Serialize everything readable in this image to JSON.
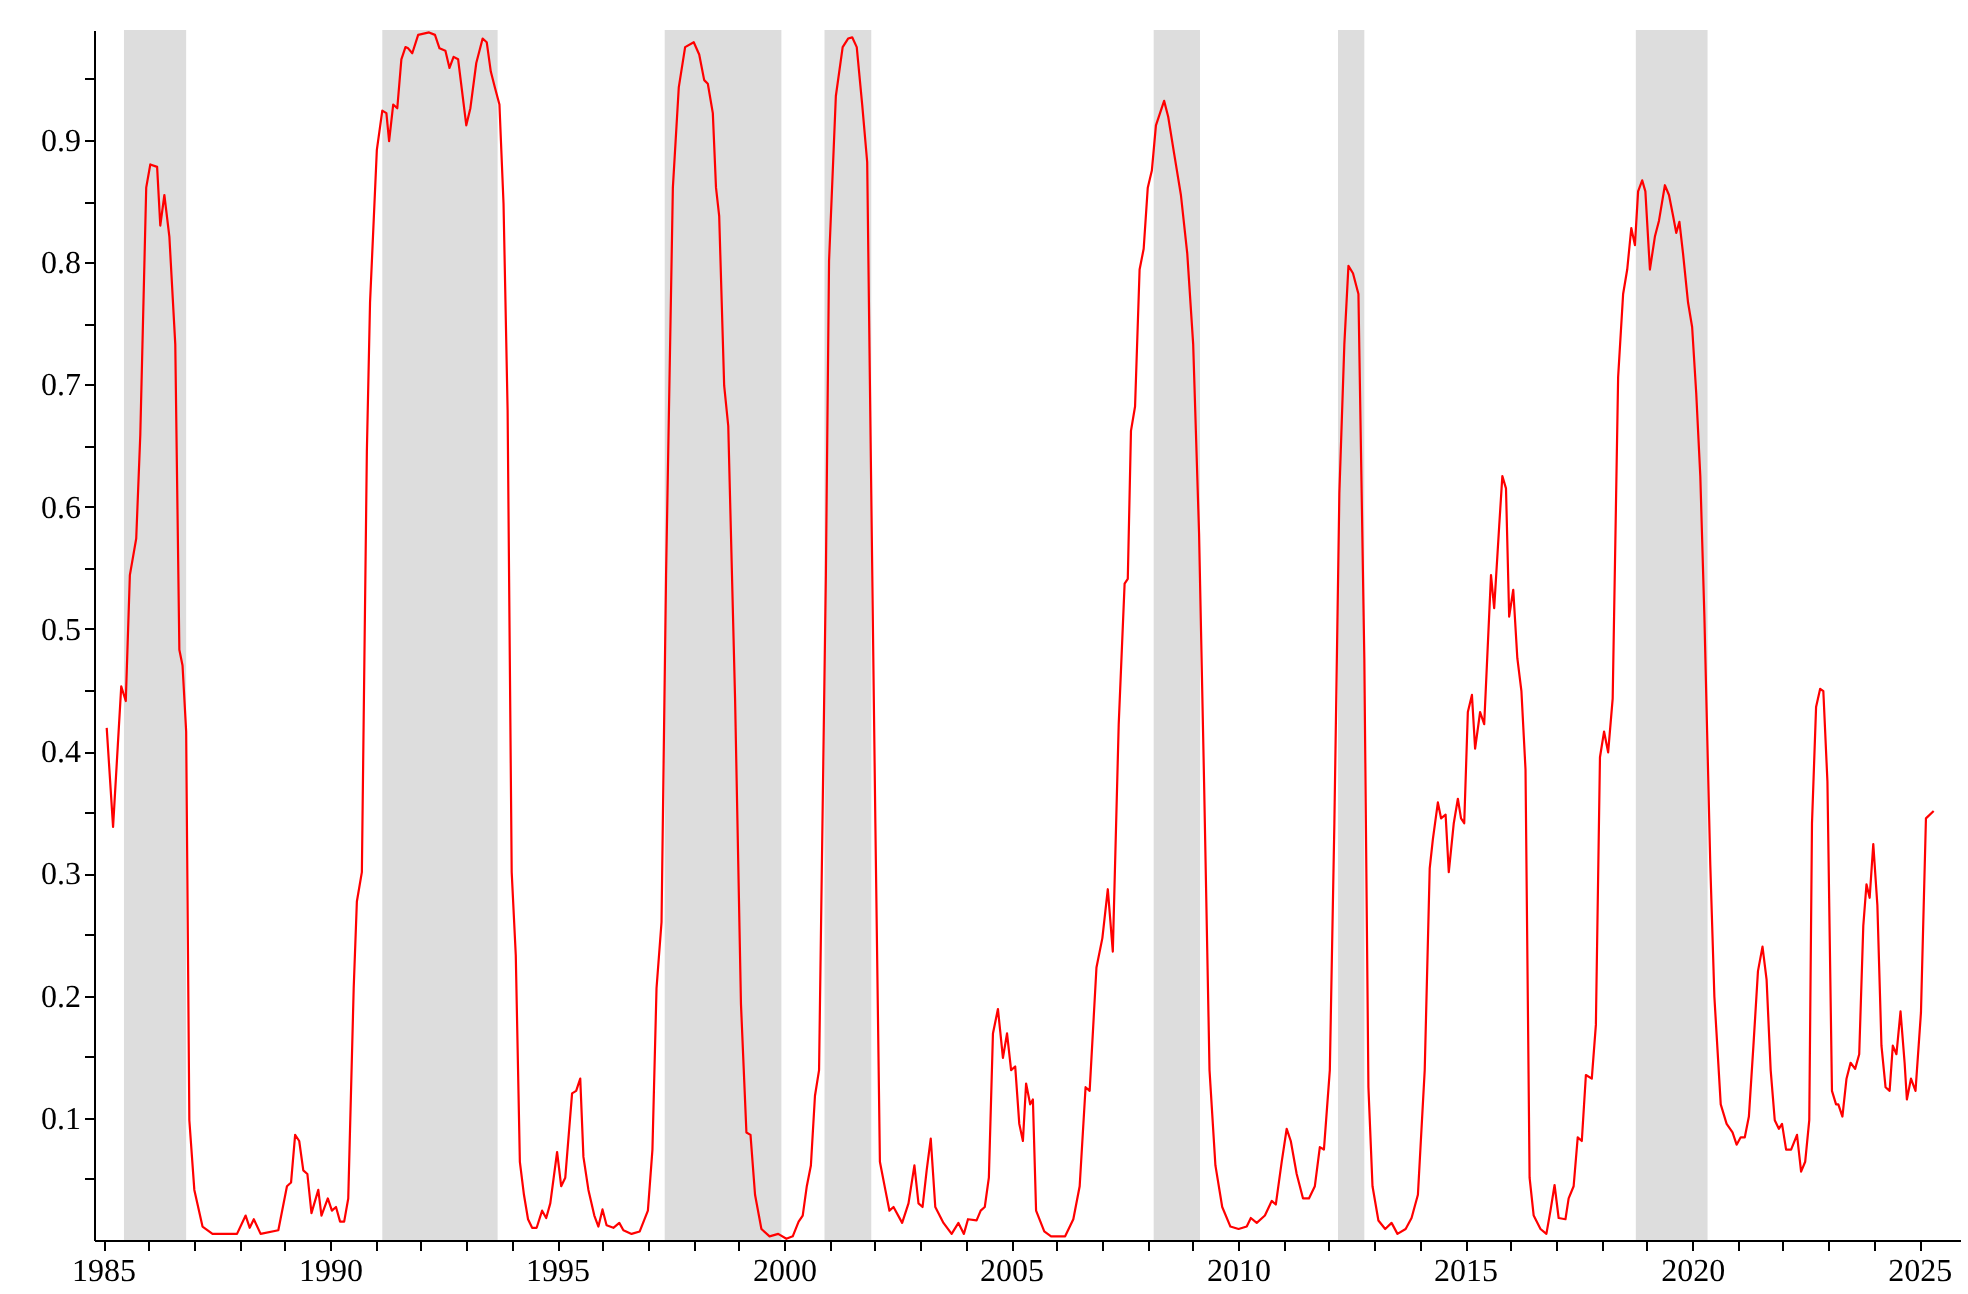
{
  "chart_data": {
    "type": "line",
    "x": [
      1985.08,
      1985.22,
      1985.4,
      1985.5,
      1985.59,
      1985.73,
      1985.82,
      1985.95,
      1986.04,
      1986.19,
      1986.26,
      1986.35,
      1986.46,
      1986.59,
      1986.68,
      1986.75,
      1986.83,
      1986.9,
      1987.01,
      1987.19,
      1987.41,
      1987.95,
      1988.14,
      1988.23,
      1988.32,
      1988.47,
      1988.86,
      1989.05,
      1989.14,
      1989.23,
      1989.32,
      1989.41,
      1989.5,
      1989.59,
      1989.74,
      1989.81,
      1989.95,
      1990.04,
      1990.13,
      1990.22,
      1990.31,
      1990.4,
      1990.52,
      1990.59,
      1990.7,
      1990.81,
      1990.88,
      1991.03,
      1991.15,
      1991.24,
      1991.3,
      1991.39,
      1991.48,
      1991.57,
      1991.66,
      1991.72,
      1991.81,
      1991.94,
      1992.18,
      1992.31,
      1992.41,
      1992.54,
      1992.63,
      1992.72,
      1992.82,
      1993.0,
      1993.09,
      1993.22,
      1993.36,
      1993.45,
      1993.54,
      1993.63,
      1993.73,
      1993.82,
      1993.91,
      1994.0,
      1994.09,
      1994.18,
      1994.27,
      1994.36,
      1994.45,
      1994.55,
      1994.67,
      1994.76,
      1994.85,
      1995.0,
      1995.09,
      1995.18,
      1995.33,
      1995.42,
      1995.51,
      1995.58,
      1995.69,
      1995.82,
      1995.91,
      1996.0,
      1996.09,
      1996.24,
      1996.37,
      1996.46,
      1996.64,
      1996.82,
      1997.0,
      1997.1,
      1997.19,
      1997.3,
      1997.4,
      1997.55,
      1997.68,
      1997.82,
      1998.01,
      1998.13,
      1998.24,
      1998.32,
      1998.43,
      1998.5,
      1998.57,
      1998.68,
      1998.77,
      1998.92,
      1999.05,
      1999.17,
      1999.26,
      1999.36,
      1999.5,
      1999.68,
      1999.87,
      2000.05,
      2000.19,
      2000.32,
      2000.41,
      2000.5,
      2000.59,
      2000.68,
      2000.77,
      2000.92,
      2000.99,
      2001.14,
      2001.29,
      2001.41,
      2001.5,
      2001.6,
      2001.72,
      2001.83,
      2001.92,
      2002.01,
      2002.11,
      2002.23,
      2002.32,
      2002.41,
      2002.6,
      2002.74,
      2002.87,
      2002.96,
      2003.05,
      2003.14,
      2003.23,
      2003.33,
      2003.51,
      2003.69,
      2003.84,
      2003.96,
      2004.05,
      2004.24,
      2004.33,
      2004.42,
      2004.51,
      2004.6,
      2004.71,
      2004.82,
      2004.91,
      2005.0,
      2005.09,
      2005.18,
      2005.26,
      2005.33,
      2005.42,
      2005.48,
      2005.55,
      2005.73,
      2005.88,
      2006.19,
      2006.37,
      2006.51,
      2006.64,
      2006.73,
      2006.88,
      2007.01,
      2007.13,
      2007.24,
      2007.37,
      2007.5,
      2007.57,
      2007.64,
      2007.73,
      2007.83,
      2007.92,
      2008.01,
      2008.1,
      2008.19,
      2008.28,
      2008.37,
      2008.46,
      2008.59,
      2008.74,
      2008.88,
      2009.01,
      2009.14,
      2009.25,
      2009.37,
      2009.5,
      2009.65,
      2009.83,
      2010.01,
      2010.19,
      2010.28,
      2010.41,
      2010.59,
      2010.74,
      2010.83,
      2010.96,
      2011.07,
      2011.16,
      2011.29,
      2011.43,
      2011.56,
      2011.69,
      2011.8,
      2011.89,
      2012.02,
      2012.12,
      2012.23,
      2012.34,
      2012.43,
      2012.53,
      2012.65,
      2012.78,
      2012.87,
      2012.96,
      2013.09,
      2013.24,
      2013.38,
      2013.51,
      2013.69,
      2013.82,
      2013.96,
      2014.11,
      2014.22,
      2014.29,
      2014.4,
      2014.47,
      2014.57,
      2014.64,
      2014.75,
      2014.84,
      2014.91,
      2014.98,
      2015.06,
      2015.15,
      2015.22,
      2015.33,
      2015.42,
      2015.57,
      2015.64,
      2015.75,
      2015.82,
      2015.9,
      2015.97,
      2016.06,
      2016.15,
      2016.24,
      2016.33,
      2016.42,
      2016.51,
      2016.66,
      2016.79,
      2016.88,
      2016.97,
      2017.06,
      2017.21,
      2017.28,
      2017.39,
      2017.48,
      2017.57,
      2017.66,
      2017.79,
      2017.88,
      2017.97,
      2018.06,
      2018.15,
      2018.25,
      2018.37,
      2018.48,
      2018.57,
      2018.66,
      2018.74,
      2018.81,
      2018.9,
      2018.97,
      2019.07,
      2019.18,
      2019.27,
      2019.4,
      2019.49,
      2019.58,
      2019.65,
      2019.72,
      2019.8,
      2019.91,
      2020.0,
      2020.09,
      2020.18,
      2020.27,
      2020.4,
      2020.49,
      2020.63,
      2020.76,
      2020.89,
      2020.98,
      2021.07,
      2021.16,
      2021.25,
      2021.35,
      2021.45,
      2021.55,
      2021.64,
      2021.73,
      2021.82,
      2021.91,
      2021.98,
      2022.07,
      2022.18,
      2022.31,
      2022.4,
      2022.49,
      2022.58,
      2022.64,
      2022.73,
      2022.82,
      2022.89,
      2022.98,
      2023.08,
      2023.17,
      2023.22,
      2023.31,
      2023.4,
      2023.49,
      2023.59,
      2023.68,
      2023.77,
      2023.84,
      2023.91,
      2023.99,
      2024.08,
      2024.17,
      2024.26,
      2024.35,
      2024.42,
      2024.5,
      2024.59,
      2024.68,
      2024.73,
      2024.82,
      2024.92,
      2025.04,
      2025.15,
      2025.32
    ],
    "series": [
      {
        "color": "#ff0000",
        "values": [
          0.419,
          0.338,
          0.453,
          0.441,
          0.544,
          0.574,
          0.659,
          0.861,
          0.88,
          0.878,
          0.83,
          0.855,
          0.821,
          0.733,
          0.483,
          0.47,
          0.416,
          0.098,
          0.041,
          0.011,
          0.005,
          0.005,
          0.02,
          0.01,
          0.017,
          0.005,
          0.008,
          0.044,
          0.047,
          0.086,
          0.081,
          0.057,
          0.054,
          0.022,
          0.041,
          0.02,
          0.034,
          0.024,
          0.027,
          0.015,
          0.015,
          0.034,
          0.206,
          0.277,
          0.301,
          0.645,
          0.767,
          0.892,
          0.924,
          0.922,
          0.899,
          0.929,
          0.926,
          0.966,
          0.976,
          0.975,
          0.971,
          0.986,
          0.988,
          0.986,
          0.975,
          0.973,
          0.959,
          0.968,
          0.966,
          0.912,
          0.926,
          0.963,
          0.983,
          0.98,
          0.956,
          0.943,
          0.929,
          0.848,
          0.679,
          0.301,
          0.233,
          0.064,
          0.037,
          0.017,
          0.01,
          0.01,
          0.024,
          0.018,
          0.03,
          0.072,
          0.044,
          0.051,
          0.12,
          0.122,
          0.132,
          0.068,
          0.041,
          0.02,
          0.011,
          0.025,
          0.012,
          0.01,
          0.014,
          0.008,
          0.005,
          0.007,
          0.024,
          0.074,
          0.206,
          0.26,
          0.544,
          0.861,
          0.943,
          0.976,
          0.98,
          0.97,
          0.949,
          0.946,
          0.922,
          0.861,
          0.838,
          0.699,
          0.666,
          0.443,
          0.193,
          0.088,
          0.086,
          0.037,
          0.009,
          0.003,
          0.005,
          0.001,
          0.003,
          0.015,
          0.02,
          0.044,
          0.061,
          0.118,
          0.139,
          0.544,
          0.801,
          0.936,
          0.976,
          0.983,
          0.984,
          0.976,
          0.929,
          0.882,
          0.611,
          0.341,
          0.064,
          0.041,
          0.024,
          0.027,
          0.014,
          0.03,
          0.061,
          0.03,
          0.027,
          0.057,
          0.083,
          0.027,
          0.014,
          0.005,
          0.014,
          0.005,
          0.017,
          0.016,
          0.024,
          0.027,
          0.051,
          0.169,
          0.189,
          0.149,
          0.169,
          0.139,
          0.142,
          0.095,
          0.081,
          0.128,
          0.111,
          0.115,
          0.024,
          0.007,
          0.003,
          0.003,
          0.017,
          0.044,
          0.125,
          0.122,
          0.223,
          0.247,
          0.287,
          0.236,
          0.422,
          0.537,
          0.541,
          0.662,
          0.682,
          0.794,
          0.811,
          0.861,
          0.875,
          0.912,
          0.922,
          0.932,
          0.919,
          0.889,
          0.855,
          0.807,
          0.733,
          0.578,
          0.375,
          0.139,
          0.061,
          0.027,
          0.011,
          0.009,
          0.011,
          0.018,
          0.014,
          0.02,
          0.032,
          0.029,
          0.064,
          0.091,
          0.081,
          0.054,
          0.034,
          0.034,
          0.044,
          0.076,
          0.074,
          0.139,
          0.341,
          0.611,
          0.733,
          0.797,
          0.791,
          0.774,
          0.476,
          0.125,
          0.044,
          0.016,
          0.009,
          0.014,
          0.005,
          0.009,
          0.018,
          0.037,
          0.139,
          0.304,
          0.328,
          0.358,
          0.345,
          0.348,
          0.301,
          0.341,
          0.361,
          0.345,
          0.341,
          0.432,
          0.446,
          0.402,
          0.432,
          0.422,
          0.544,
          0.517,
          0.584,
          0.625,
          0.615,
          0.51,
          0.532,
          0.476,
          0.449,
          0.385,
          0.051,
          0.02,
          0.009,
          0.005,
          0.024,
          0.045,
          0.018,
          0.017,
          0.034,
          0.044,
          0.084,
          0.081,
          0.135,
          0.132,
          0.176,
          0.395,
          0.416,
          0.399,
          0.443,
          0.706,
          0.774,
          0.794,
          0.828,
          0.814,
          0.858,
          0.867,
          0.858,
          0.794,
          0.821,
          0.834,
          0.863,
          0.855,
          0.838,
          0.824,
          0.833,
          0.807,
          0.767,
          0.747,
          0.693,
          0.625,
          0.51,
          0.307,
          0.199,
          0.111,
          0.095,
          0.088,
          0.078,
          0.084,
          0.084,
          0.101,
          0.159,
          0.22,
          0.24,
          0.213,
          0.139,
          0.098,
          0.091,
          0.095,
          0.074,
          0.074,
          0.086,
          0.056,
          0.064,
          0.098,
          0.341,
          0.436,
          0.451,
          0.449,
          0.375,
          0.122,
          0.111,
          0.111,
          0.101,
          0.132,
          0.145,
          0.14,
          0.152,
          0.257,
          0.291,
          0.28,
          0.324,
          0.274,
          0.159,
          0.125,
          0.122,
          0.159,
          0.152,
          0.187,
          0.145,
          0.115,
          0.132,
          0.122,
          0.186,
          0.345,
          0.351
        ]
      }
    ],
    "xlim": [
      1984.8,
      2025.9
    ],
    "ylim": [
      0,
      0.99
    ],
    "xticks": [
      1985,
      {
        "value": 1986,
        "label": null
      },
      {
        "value": 1987,
        "label": null
      },
      {
        "value": 1988,
        "label": null
      },
      {
        "value": 1989,
        "label": null
      },
      1990,
      {
        "value": 1991,
        "label": null
      },
      {
        "value": 1992,
        "label": null
      },
      {
        "value": 1993,
        "label": null
      },
      {
        "value": 1994,
        "label": null
      },
      1995,
      {
        "value": 1996,
        "label": null
      },
      {
        "value": 1997,
        "label": null
      },
      {
        "value": 1998,
        "label": null
      },
      {
        "value": 1999,
        "label": null
      },
      2000,
      {
        "value": 2001,
        "label": null
      },
      {
        "value": 2002,
        "label": null
      },
      {
        "value": 2003,
        "label": null
      },
      {
        "value": 2004,
        "label": null
      },
      2005,
      {
        "value": 2006,
        "label": null
      },
      {
        "value": 2007,
        "label": null
      },
      {
        "value": 2008,
        "label": null
      },
      {
        "value": 2009,
        "label": null
      },
      2010,
      {
        "value": 2011,
        "label": null
      },
      {
        "value": 2012,
        "label": null
      },
      {
        "value": 2013,
        "label": null
      },
      {
        "value": 2014,
        "label": null
      },
      2015,
      {
        "value": 2016,
        "label": null
      },
      {
        "value": 2017,
        "label": null
      },
      {
        "value": 2018,
        "label": null
      },
      {
        "value": 2019,
        "label": null
      },
      2020,
      {
        "value": 2021,
        "label": null
      },
      {
        "value": 2022,
        "label": null
      },
      {
        "value": 2023,
        "label": null
      },
      {
        "value": 2024,
        "label": null
      },
      2025
    ],
    "yticks": [
      {
        "value": 0.05,
        "label": null
      },
      0.1,
      {
        "value": 0.15,
        "label": null
      },
      0.2,
      {
        "value": 0.25,
        "label": null
      },
      0.3,
      {
        "value": 0.35,
        "label": null
      },
      0.4,
      {
        "value": 0.45,
        "label": null
      },
      0.5,
      {
        "value": 0.55,
        "label": null
      },
      0.6,
      {
        "value": 0.65,
        "label": null
      },
      0.7,
      {
        "value": 0.75,
        "label": null
      },
      0.8,
      {
        "value": 0.85,
        "label": null
      },
      0.9,
      {
        "value": 0.95,
        "label": null
      }
    ],
    "bands": [
      {
        "axis": "x",
        "from": 1985.46,
        "to": 1986.83,
        "color": "#dddddd"
      },
      {
        "axis": "x",
        "from": 1991.15,
        "to": 1993.69,
        "color": "#dddddd"
      },
      {
        "axis": "x",
        "from": 1997.37,
        "to": 1999.94,
        "color": "#dddddd"
      },
      {
        "axis": "x",
        "from": 2000.89,
        "to": 2001.92,
        "color": "#dddddd"
      },
      {
        "axis": "x",
        "from": 2008.14,
        "to": 2009.16,
        "color": "#dddddd"
      },
      {
        "axis": "x",
        "from": 2012.2,
        "to": 2012.78,
        "color": "#dddddd"
      },
      {
        "axis": "x",
        "from": 2018.76,
        "to": 2020.34,
        "color": "#dddddd"
      }
    ]
  }
}
